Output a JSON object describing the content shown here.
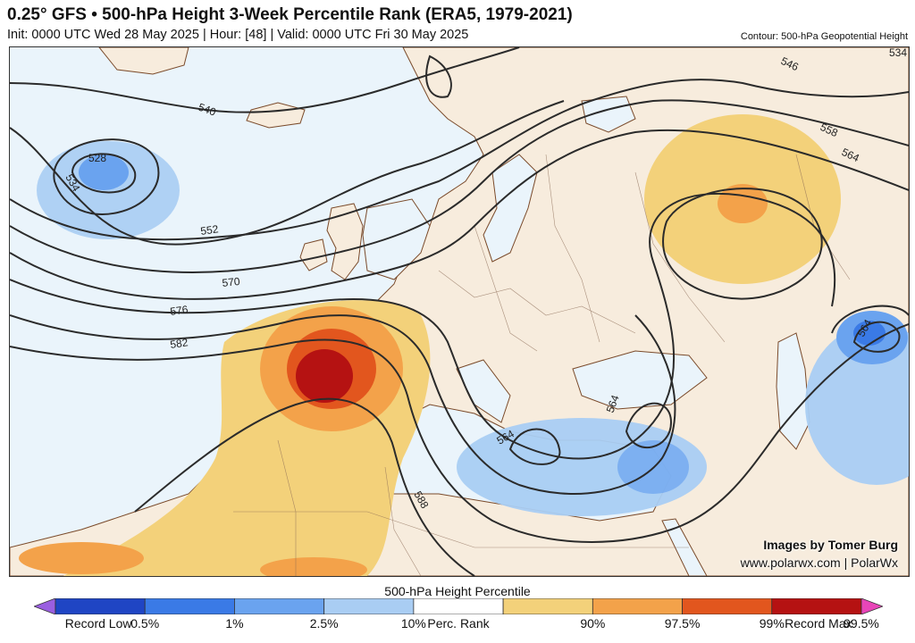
{
  "header": {
    "title": "0.25° GFS • 500-hPa Height 3-Week Percentile Rank (ERA5, 1979-2021)",
    "subtitle": "Init: 0000 UTC Wed 28 May 2025 | Hour: [48] | Valid: 0000 UTC Fri 30 May 2025",
    "contour_note": "Contour: 500-hPa Geopotential Height"
  },
  "map": {
    "contour_labels": [
      "528",
      "534",
      "540",
      "546",
      "552",
      "558",
      "564",
      "570",
      "576",
      "582",
      "588",
      "534",
      "546",
      "558",
      "564",
      "564",
      "564"
    ],
    "credit_line1": "Images by Tomer Burg",
    "credit_line2": "www.polarwx.com | PolarWx",
    "ocean_color": "#eaf4fb",
    "land_color": "#f7ecdd"
  },
  "colorbar": {
    "title": "500-hPa Height Percentile",
    "labels": [
      "Record Low",
      "0.5%",
      "1%",
      "2.5%",
      "10%",
      "Perc. Rank",
      "90%",
      "97.5%",
      "99%",
      "99.5%",
      "Record Max"
    ],
    "colors": [
      "#9a5fe0",
      "#1f45c4",
      "#3a7ae6",
      "#6aa3ef",
      "#a9cdf3",
      "#ffffff",
      "#f3d17a",
      "#f3a24a",
      "#e2561e",
      "#b51212",
      "#e845b8"
    ]
  }
}
